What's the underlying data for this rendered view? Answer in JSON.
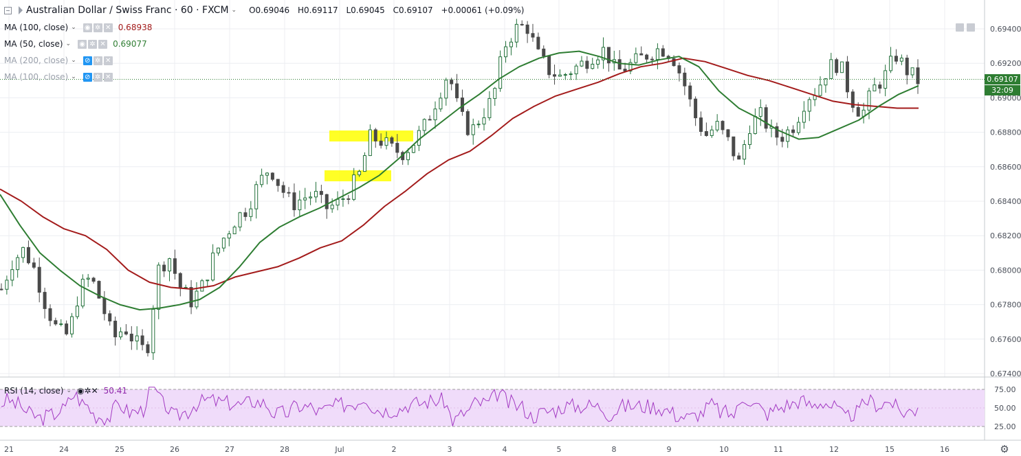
{
  "header": {
    "symbol": "Australian Dollar / Swiss Franc · 60 · FXCM",
    "open": "O0.69046",
    "high": "H0.69117",
    "low": "L0.69045",
    "close": "C0.69107",
    "change": "+0.00061 (+0.09%)"
  },
  "indicators": [
    {
      "label": "MA (100, close)",
      "value": "0.68938",
      "color": "#a31b1b",
      "faded": false
    },
    {
      "label": "MA (50, close)",
      "value": "0.69077",
      "color": "#2e7d32",
      "faded": false
    },
    {
      "label": "MA (200, close)",
      "value": "",
      "color": "",
      "faded": true
    },
    {
      "label": "MA (100, close)",
      "value": "",
      "color": "",
      "faded": true
    }
  ],
  "price_tags": {
    "last": "0.69107",
    "countdown": "32:09"
  },
  "rsi": {
    "label": "RSI (14, close)",
    "value": "50.41",
    "levels": [
      "75.00",
      "50.00",
      "25.00"
    ]
  },
  "colors": {
    "up": "#22703a",
    "down": "#4a4a4a",
    "ma100": "#a31b1b",
    "ma50": "#2e7d32",
    "rsi_line": "#a239c2",
    "rsi_band": "#f0dcfa",
    "highlight": "#ffff00"
  },
  "chart_data": {
    "type": "line",
    "title": "Australian Dollar / Swiss Franc · 60 · FXCM",
    "xlabel": "",
    "ylabel": "",
    "x_ticks": [
      "21",
      "24",
      "25",
      "26",
      "27",
      "28",
      "Jul",
      "2",
      "3",
      "4",
      "5",
      "8",
      "9",
      "10",
      "11",
      "12",
      "15",
      "16"
    ],
    "y_ticks": [
      "0.69400",
      "0.69200",
      "0.69000",
      "0.68800",
      "0.68600",
      "0.68400",
      "0.68200",
      "0.68000",
      "0.67800",
      "0.67600",
      "0.67400"
    ],
    "ylim": [
      0.6738,
      0.695
    ],
    "grid": true,
    "series": [
      {
        "name": "Price (close, approx.)",
        "values": [
          0.6789,
          0.6805,
          0.6812,
          0.68,
          0.6779,
          0.6765,
          0.6762,
          0.6789,
          0.6796,
          0.678,
          0.676,
          0.6767,
          0.6758,
          0.6752,
          0.68,
          0.6808,
          0.679,
          0.6782,
          0.6791,
          0.6808,
          0.682,
          0.683,
          0.6836,
          0.685,
          0.686,
          0.6848,
          0.6838,
          0.6842,
          0.6844,
          0.6836,
          0.6838,
          0.6845,
          0.6855,
          0.6877,
          0.6875,
          0.687,
          0.6868,
          0.6875,
          0.6885,
          0.69,
          0.6915,
          0.689,
          0.688,
          0.689,
          0.69,
          0.693,
          0.694,
          0.6942,
          0.6925,
          0.6916,
          0.6912,
          0.6916,
          0.692,
          0.6925,
          0.6928,
          0.6915,
          0.6918,
          0.6922,
          0.6926,
          0.6929,
          0.6925,
          0.691,
          0.689,
          0.6878,
          0.6884,
          0.6875,
          0.6862,
          0.6885,
          0.689,
          0.6878,
          0.6878,
          0.6885,
          0.69,
          0.6905,
          0.6918,
          0.692,
          0.69,
          0.689,
          0.6905,
          0.6912,
          0.6925,
          0.6916,
          0.691
        ]
      },
      {
        "name": "MA (50, close)",
        "values": [
          0.6844,
          0.6826,
          0.681,
          0.68,
          0.6791,
          0.6785,
          0.678,
          0.6777,
          0.6778,
          0.678,
          0.6783,
          0.679,
          0.6802,
          0.6816,
          0.6825,
          0.6831,
          0.6836,
          0.6842,
          0.6848,
          0.6855,
          0.6865,
          0.6876,
          0.6885,
          0.6894,
          0.6902,
          0.6911,
          0.6918,
          0.6923,
          0.6926,
          0.6927,
          0.6924,
          0.692,
          0.6919,
          0.6922,
          0.6924,
          0.6918,
          0.6904,
          0.6894,
          0.6888,
          0.6881,
          0.6876,
          0.6877,
          0.6882,
          0.6887,
          0.6895,
          0.6902,
          0.6907
        ]
      },
      {
        "name": "MA (100, close)",
        "values": [
          0.6847,
          0.684,
          0.6831,
          0.6824,
          0.682,
          0.6812,
          0.68,
          0.6793,
          0.679,
          0.6789,
          0.6791,
          0.6796,
          0.6799,
          0.6802,
          0.6807,
          0.6813,
          0.6817,
          0.6826,
          0.6837,
          0.6846,
          0.6856,
          0.6864,
          0.6869,
          0.6878,
          0.6888,
          0.6895,
          0.6901,
          0.6905,
          0.6909,
          0.6914,
          0.6918,
          0.692,
          0.6923,
          0.6921,
          0.6917,
          0.6913,
          0.691,
          0.6906,
          0.6902,
          0.6898,
          0.6896,
          0.6895,
          0.6894,
          0.6894
        ]
      }
    ]
  }
}
